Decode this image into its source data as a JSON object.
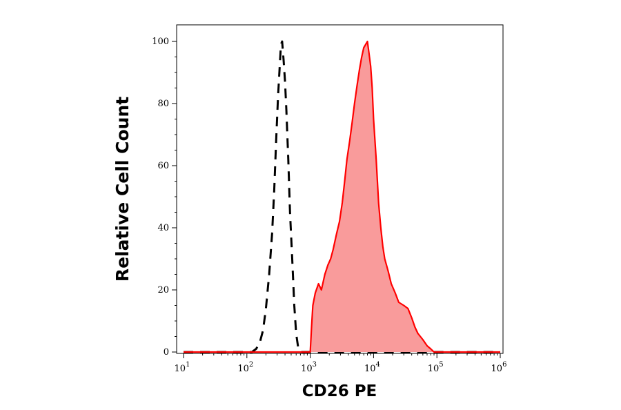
{
  "chart_data": {
    "type": "area",
    "title": "",
    "xlabel": "CD26 PE",
    "ylabel": "Relative Cell Count",
    "x_scale": "log",
    "xlim": [
      10,
      1000000
    ],
    "ylim": [
      0,
      100
    ],
    "grid": false,
    "legend": "none",
    "yticks": [
      0,
      20,
      40,
      60,
      80,
      100
    ],
    "xticks": [
      {
        "value": 10,
        "base": "10",
        "exp": "1"
      },
      {
        "value": 100,
        "base": "10",
        "exp": "2"
      },
      {
        "value": 1000,
        "base": "10",
        "exp": "3"
      },
      {
        "value": 10000,
        "base": "10",
        "exp": "4"
      },
      {
        "value": 100000,
        "base": "10",
        "exp": "5"
      },
      {
        "value": 1000000,
        "base": "10",
        "exp": "6"
      }
    ],
    "series": [
      {
        "style": "dashed",
        "color": "#000000",
        "fill": "none",
        "x": [
          10,
          120,
          140,
          160,
          180,
          200,
          225,
          250,
          270,
          290,
          310,
          330,
          345,
          360,
          380,
          400,
          420,
          450,
          480,
          520,
          560,
          600,
          650,
          720,
          1000000
        ],
        "y": [
          0,
          0,
          1,
          3,
          7,
          14,
          25,
          38,
          52,
          68,
          82,
          92,
          99,
          100,
          94,
          87,
          78,
          62,
          45,
          30,
          15,
          6,
          1,
          0,
          0
        ]
      },
      {
        "style": "solid",
        "color": "#ff0000",
        "fill": "#f99b9b",
        "x": [
          10,
          1000,
          1050,
          1100,
          1200,
          1350,
          1500,
          1700,
          1900,
          2100,
          2300,
          2600,
          2900,
          3200,
          3500,
          3800,
          4200,
          4600,
          5000,
          5500,
          6000,
          6500,
          7000,
          7500,
          8000,
          8500,
          9000,
          9500,
          10000,
          11000,
          12000,
          13000,
          14000,
          15000,
          17000,
          19000,
          22000,
          25000,
          30000,
          35000,
          40000,
          45000,
          50000,
          60000,
          70000,
          80000,
          90000,
          100000,
          120000,
          1000000
        ],
        "y": [
          0,
          0,
          8,
          15,
          19,
          22,
          20,
          25,
          28,
          30,
          33,
          38,
          42,
          48,
          55,
          62,
          68,
          74,
          80,
          86,
          91,
          95,
          98,
          99,
          100,
          96,
          92,
          85,
          75,
          62,
          48,
          40,
          34,
          30,
          26,
          22,
          19,
          16,
          15,
          14,
          11,
          8,
          6,
          4,
          2,
          1,
          0,
          0,
          0,
          0
        ]
      }
    ]
  }
}
